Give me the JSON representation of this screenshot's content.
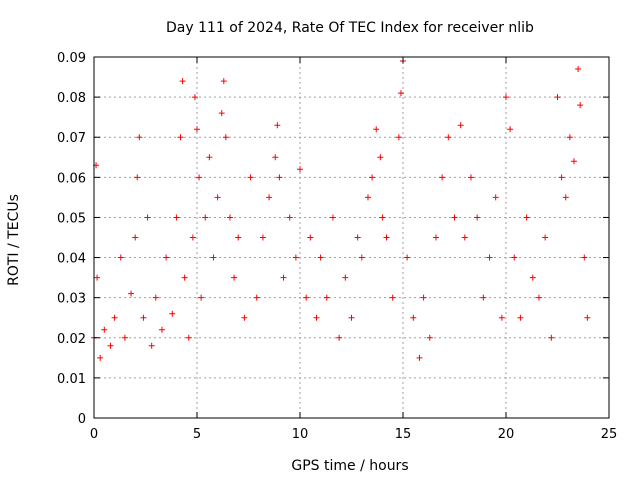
{
  "chart_data": {
    "type": "scatter",
    "title": "Day 111 of 2024, Rate Of TEC Index for receiver nlib",
    "xlabel": "GPS time / hours",
    "ylabel": "ROTI / TECUs",
    "xlim": [
      0,
      25
    ],
    "ylim": [
      0,
      0.09
    ],
    "x_ticks": [
      "0",
      "5",
      "10",
      "15",
      "20",
      "25"
    ],
    "y_ticks": [
      "0",
      "0.01",
      "0.02",
      "0.03",
      "0.04",
      "0.05",
      "0.06",
      "0.07",
      "0.08",
      "0.09"
    ],
    "grid": true,
    "marker": "+",
    "color": "#ff0000",
    "series": [
      {
        "x": [
          0.0,
          0.1,
          0.15,
          0.3,
          0.5,
          0.8,
          1.0,
          1.3,
          1.5,
          1.8,
          2.0,
          2.1,
          2.2,
          2.4,
          2.6,
          2.8,
          3.0,
          3.3,
          3.5,
          3.8,
          4.0,
          4.2,
          4.3,
          4.4,
          4.6,
          4.8,
          4.9,
          5.0,
          5.1,
          5.2,
          5.4,
          5.6,
          5.8,
          6.0,
          6.2,
          6.3,
          6.4,
          6.6,
          6.8,
          7.0,
          7.3,
          7.6,
          7.9,
          8.2,
          8.5,
          8.8,
          8.9,
          9.0,
          9.2,
          9.5,
          9.8,
          10.0,
          10.3,
          10.5,
          10.8,
          11.0,
          11.3,
          11.6,
          11.9,
          12.2,
          12.5,
          12.8,
          13.0,
          13.3,
          13.5,
          13.7,
          13.9,
          14.0,
          14.2,
          14.5,
          14.8,
          14.9,
          15.0,
          15.2,
          15.5,
          15.8,
          16.0,
          16.3,
          16.6,
          16.9,
          17.2,
          17.5,
          17.8,
          18.0,
          18.3,
          18.6,
          18.9,
          19.2,
          19.5,
          19.8,
          20.0,
          20.2,
          20.4,
          20.7,
          21.0,
          21.3,
          21.6,
          21.9,
          22.2,
          22.5,
          22.7,
          22.9,
          23.1,
          23.3,
          23.5,
          23.6,
          23.8,
          23.95
        ],
        "y": [
          0.02,
          0.063,
          0.035,
          0.015,
          0.022,
          0.018,
          0.025,
          0.04,
          0.02,
          0.031,
          0.045,
          0.06,
          0.07,
          0.025,
          0.05,
          0.018,
          0.03,
          0.022,
          0.04,
          0.026,
          0.05,
          0.07,
          0.084,
          0.035,
          0.02,
          0.045,
          0.08,
          0.072,
          0.06,
          0.03,
          0.05,
          0.065,
          0.04,
          0.055,
          0.076,
          0.084,
          0.07,
          0.05,
          0.035,
          0.045,
          0.025,
          0.06,
          0.03,
          0.045,
          0.055,
          0.065,
          0.073,
          0.06,
          0.035,
          0.05,
          0.04,
          0.062,
          0.03,
          0.045,
          0.025,
          0.04,
          0.03,
          0.05,
          0.02,
          0.035,
          0.025,
          0.045,
          0.04,
          0.055,
          0.06,
          0.072,
          0.065,
          0.05,
          0.045,
          0.03,
          0.07,
          0.081,
          0.089,
          0.04,
          0.025,
          0.015,
          0.03,
          0.02,
          0.045,
          0.06,
          0.07,
          0.05,
          0.073,
          0.045,
          0.06,
          0.05,
          0.03,
          0.04,
          0.055,
          0.025,
          0.08,
          0.072,
          0.04,
          0.025,
          0.05,
          0.035,
          0.03,
          0.045,
          0.02,
          0.08,
          0.06,
          0.055,
          0.07,
          0.064,
          0.087,
          0.078,
          0.04,
          0.025
        ]
      }
    ]
  }
}
